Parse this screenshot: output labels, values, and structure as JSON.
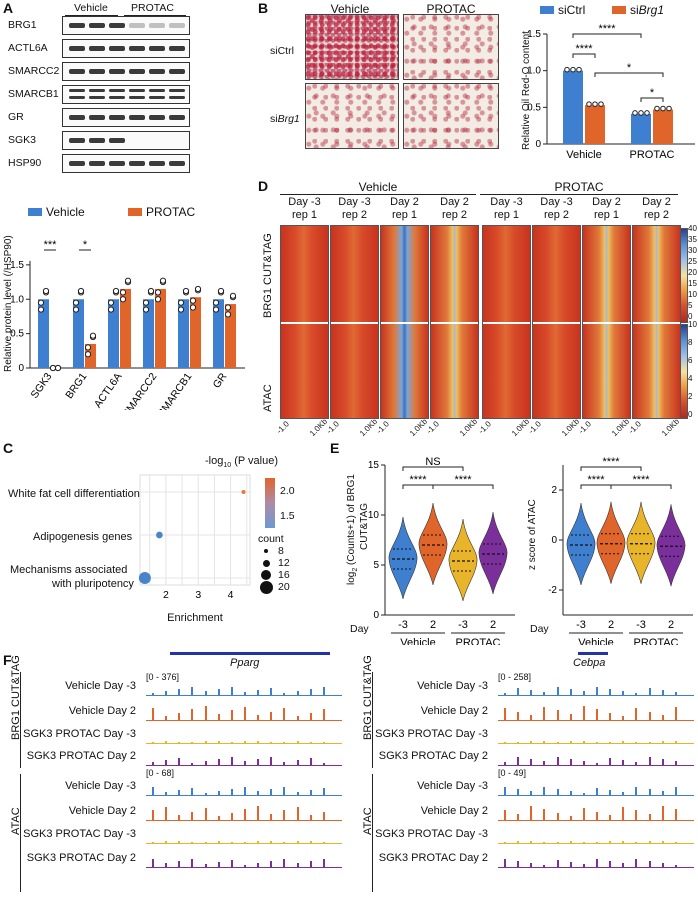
{
  "panels": {
    "A": {
      "letter": "A",
      "blot_header": {
        "vehicle": "Vehicle",
        "protac": "PROTAC"
      },
      "blot_rows": [
        {
          "label": "BRG1",
          "pattern": "loss"
        },
        {
          "label": "ACTL6A",
          "pattern": "even"
        },
        {
          "label": "SMARCC2",
          "pattern": "even"
        },
        {
          "label": "SMARCB1",
          "pattern": "double"
        },
        {
          "label": "GR",
          "pattern": "even"
        },
        {
          "label": "SGK3",
          "pattern": "gone"
        },
        {
          "label": "HSP90",
          "pattern": "even"
        }
      ],
      "legend": {
        "vehicle": "Vehicle",
        "protac": "PROTAC"
      },
      "ylabel": "Relative protein level (/HSP90)",
      "sig": [
        "***",
        "*"
      ]
    },
    "B": {
      "letter": "B",
      "col_labels": [
        "Vehicle",
        "PROTAC"
      ],
      "row_labels": [
        "siCtrl",
        "si"
      ],
      "row2_italic": "Brg1",
      "legend": {
        "a": "siCtrl",
        "b_prefix": "si",
        "b_italic": "Brg1"
      },
      "ylabel": "Relative Oil Red-O content",
      "sig": [
        "****",
        "****",
        "****",
        "*",
        "*"
      ]
    },
    "C": {
      "letter": "C",
      "terms": [
        "White fat cell differentiation",
        "Adipogenesis genes",
        "Mechanisms associated",
        "with pluripotency"
      ],
      "xlabel": "Enrichment",
      "color_title_prefix": "-log",
      "color_title_sub": "10",
      "color_title_suffix": " (P value)",
      "count_title": "count",
      "count_values": [
        "8",
        "12",
        "16",
        "20"
      ],
      "colorbar_ticks": [
        "2.0",
        "1.5"
      ]
    },
    "D": {
      "letter": "D",
      "groups": [
        "Vehicle",
        "PROTAC"
      ],
      "columns": [
        {
          "l1": "Day -3",
          "l2": "rep 1"
        },
        {
          "l1": "Day -3",
          "l2": "rep 2"
        },
        {
          "l1": "Day 2",
          "l2": "rep 1"
        },
        {
          "l1": "Day 2",
          "l2": "rep 2"
        },
        {
          "l1": "Day -3",
          "l2": "rep 1"
        },
        {
          "l1": "Day -3",
          "l2": "rep 2"
        },
        {
          "l1": "Day 2",
          "l2": "rep 1"
        },
        {
          "l1": "Day 2",
          "l2": "rep 2"
        }
      ],
      "row_labels": [
        "BRG1 CUT&TAG",
        "ATAC"
      ],
      "scale1": [
        "40",
        "35",
        "30",
        "25",
        "20",
        "15",
        "10",
        "5",
        "0"
      ],
      "scale2": [
        "10",
        "8",
        "6",
        "4",
        "2",
        "0"
      ],
      "xticks": [
        "-1.0",
        "1.0Kb"
      ]
    },
    "E": {
      "letter": "E",
      "left_ylabel_prefix": "log",
      "left_ylabel_sub": "2",
      "left_ylabel_suffix": " (Counts+1) of BRG1",
      "left_ylabel_line2": "CUT&TAG",
      "right_ylabel": "z score of ATAC",
      "day_label": "Day",
      "days": [
        "-3",
        "2",
        "-3",
        "2"
      ],
      "groups": [
        "Vehicle",
        "PROTAC"
      ],
      "left_sig": [
        "NS",
        "****",
        "****"
      ],
      "right_sig": [
        "****",
        "****",
        "****"
      ]
    },
    "F": {
      "letter": "F",
      "left": {
        "gene": "Pparg",
        "range1": "[0 - 376]",
        "range2": "[0 - 68]",
        "group1": "BRG1 CUT&TAG",
        "group2": "ATAC",
        "tracks": [
          "Vehicle Day -3",
          "Vehicle Day 2",
          "SGK3 PROTAC Day -3",
          "SGK3 PROTAC Day 2"
        ]
      },
      "right": {
        "gene": "Cebpa",
        "range1": "[0 - 258]",
        "range2": "[0 - 49]",
        "group1": "BRG1 CUT&TAG",
        "group2": "ATAC",
        "tracks": [
          "Vehicle Day -3",
          "Vehicle Day 2",
          "SGK3 PROTAC Day -3",
          "SGK3 PROTAC Day 2"
        ]
      }
    }
  },
  "colors": {
    "vehicle": "#3f7fcf",
    "protac": "#e0652a",
    "yellow": "#e8b42a",
    "purple": "#7b2f9a",
    "dot_orange": "#e07a3a",
    "dot_blue": "#4a84c8"
  },
  "chart_data": [
    {
      "type": "bar",
      "panel": "A",
      "categories": [
        "SGK3",
        "BRG1",
        "ACTL6A",
        "SMARCC2",
        "SMARCB1",
        "GR"
      ],
      "series": [
        {
          "name": "Vehicle",
          "values": [
            1.0,
            1.0,
            1.0,
            1.0,
            1.0,
            1.0
          ]
        },
        {
          "name": "PROTAC",
          "values": [
            0.0,
            0.35,
            1.15,
            1.15,
            1.03,
            0.93
          ]
        }
      ],
      "ylabel": "Relative protein level (/HSP90)",
      "ylim": [
        0,
        1.6
      ],
      "yticks": [
        0,
        0.5,
        1.0,
        1.5
      ]
    },
    {
      "type": "bar",
      "panel": "B",
      "categories": [
        "Vehicle",
        "PROTAC"
      ],
      "series": [
        {
          "name": "siCtrl",
          "values": [
            1.0,
            0.41
          ]
        },
        {
          "name": "siBrg1",
          "values": [
            0.53,
            0.47
          ]
        }
      ],
      "ylabel": "Relative Oil Red-O content",
      "ylim": [
        0,
        1.5
      ],
      "yticks": [
        0,
        0.5,
        1.0,
        1.5
      ]
    },
    {
      "type": "scatter",
      "panel": "C",
      "points": [
        {
          "term": "White fat cell differentiation",
          "enrichment": 4.4,
          "count": 8,
          "neglog10p": 2.3
        },
        {
          "term": "Adipogenesis genes",
          "enrichment": 1.8,
          "count": 12,
          "neglog10p": 1.4
        },
        {
          "term": "Mechanisms associated with pluripotency",
          "enrichment": 1.35,
          "count": 20,
          "neglog10p": 1.3
        }
      ],
      "xlabel": "Enrichment",
      "xlim": [
        1.2,
        4.6
      ],
      "xticks": [
        2,
        3,
        4
      ]
    },
    {
      "type": "violin",
      "panel": "E-left",
      "categories": [
        "Vehicle -3",
        "Vehicle 2",
        "PROTAC -3",
        "PROTAC 2"
      ],
      "medians": [
        5.6,
        7.0,
        5.4,
        6.1
      ],
      "ylim": [
        0,
        15
      ],
      "yticks": [
        0,
        5,
        10,
        15
      ]
    },
    {
      "type": "violin",
      "panel": "E-right",
      "categories": [
        "Vehicle -3",
        "Vehicle 2",
        "PROTAC -3",
        "PROTAC 2"
      ],
      "medians": [
        -0.2,
        -0.15,
        -0.15,
        -0.25
      ],
      "ylim": [
        -3,
        3
      ],
      "yticks": [
        -2,
        0,
        2
      ]
    }
  ]
}
